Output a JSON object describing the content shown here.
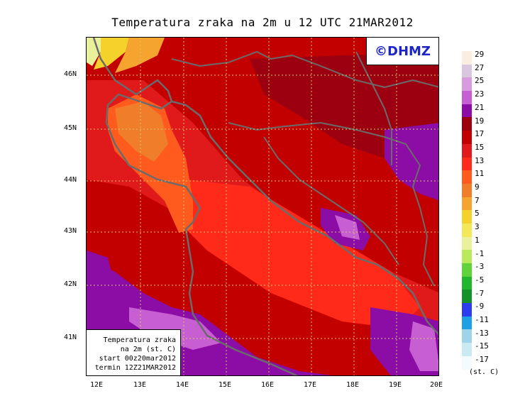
{
  "title": "Temperatura zraka na 2m u 12 UTC 21MAR2012",
  "brand": "©DHMZ",
  "info": {
    "line1": "Temperatura zraka",
    "line2": "na 2m (st. C)",
    "line3": "start 00z20mar2012",
    "line4": "termin 12Z21MAR2012"
  },
  "lat_ticks": [
    "46N",
    "45N",
    "44N",
    "43N",
    "42N",
    "41N"
  ],
  "lon_ticks": [
    "12E",
    "13E",
    "14E",
    "15E",
    "16E",
    "17E",
    "18E",
    "19E",
    "20E"
  ],
  "legend": {
    "labels": [
      "29",
      "27",
      "25",
      "23",
      "21",
      "19",
      "17",
      "15",
      "13",
      "11",
      "9",
      "7",
      "5",
      "3",
      "1",
      "-1",
      "-3",
      "-5",
      "-7",
      "-9",
      "-11",
      "-13",
      "-15",
      "-17"
    ],
    "colors": [
      "#fbeee0",
      "#d9c6df",
      "#d99be0",
      "#c75fd2",
      "#8c0da6",
      "#9c0010",
      "#c30000",
      "#e01a1a",
      "#ff2a1a",
      "#ff5b1e",
      "#f07d2a",
      "#f5a52f",
      "#f5d12b",
      "#f2e85a",
      "#e9f29a",
      "#b9ea5c",
      "#60d33a",
      "#21b62d",
      "#13922a",
      "#2c3df0",
      "#1e9fe6",
      "#9ed3e9",
      "#c9e9f3",
      "#f2fbfd"
    ],
    "units": "(st. C)"
  }
}
